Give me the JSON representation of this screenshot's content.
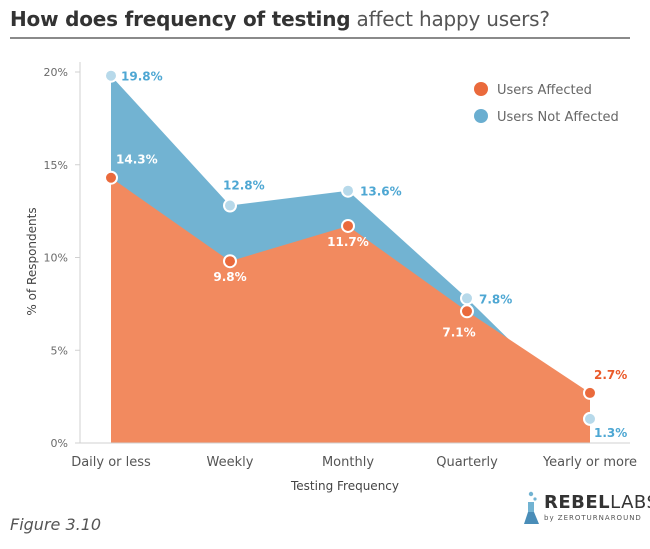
{
  "title": {
    "bold": "How does frequency of testing",
    "light": "affect happy users?"
  },
  "caption": "Figure 3.10",
  "logo": {
    "main_bold": "REBEL",
    "main_light": "LABS",
    "sub": "by ZEROTURNAROUND"
  },
  "colors": {
    "affected": "#f28a5f",
    "affected_marker": "#ea6a3c",
    "not_affected": "#72b3d2",
    "not_affected_marker": "#6aaed0",
    "affected_label": "#ffffff",
    "not_affected_label": "#4ea7d3",
    "yearly_affected_label": "#ea5a2a",
    "axis": "#d0d0d0"
  },
  "chart_data": {
    "type": "area",
    "title": "How does frequency of testing affect happy users?",
    "xlabel": "Testing Frequency",
    "ylabel": "% of Respondents",
    "categories": [
      "Daily or less",
      "Weekly",
      "Monthly",
      "Quarterly",
      "Yearly or more"
    ],
    "ylim": [
      0,
      20
    ],
    "yticks": [
      0,
      5,
      10,
      15,
      20
    ],
    "ytick_labels": [
      "0%",
      "5%",
      "10%",
      "15%",
      "20%"
    ],
    "legend_position": "top-right",
    "grid": false,
    "series": [
      {
        "name": "Users Affected",
        "values": [
          14.3,
          9.8,
          11.7,
          7.1,
          2.7
        ],
        "labels": [
          "14.3%",
          "9.8%",
          "11.7%",
          "7.1%",
          "2.7%"
        ]
      },
      {
        "name": "Users Not Affected",
        "values": [
          19.8,
          12.8,
          13.6,
          7.8,
          1.3
        ],
        "labels": [
          "19.8%",
          "12.8%",
          "13.6%",
          "7.8%",
          "1.3%"
        ]
      }
    ]
  }
}
